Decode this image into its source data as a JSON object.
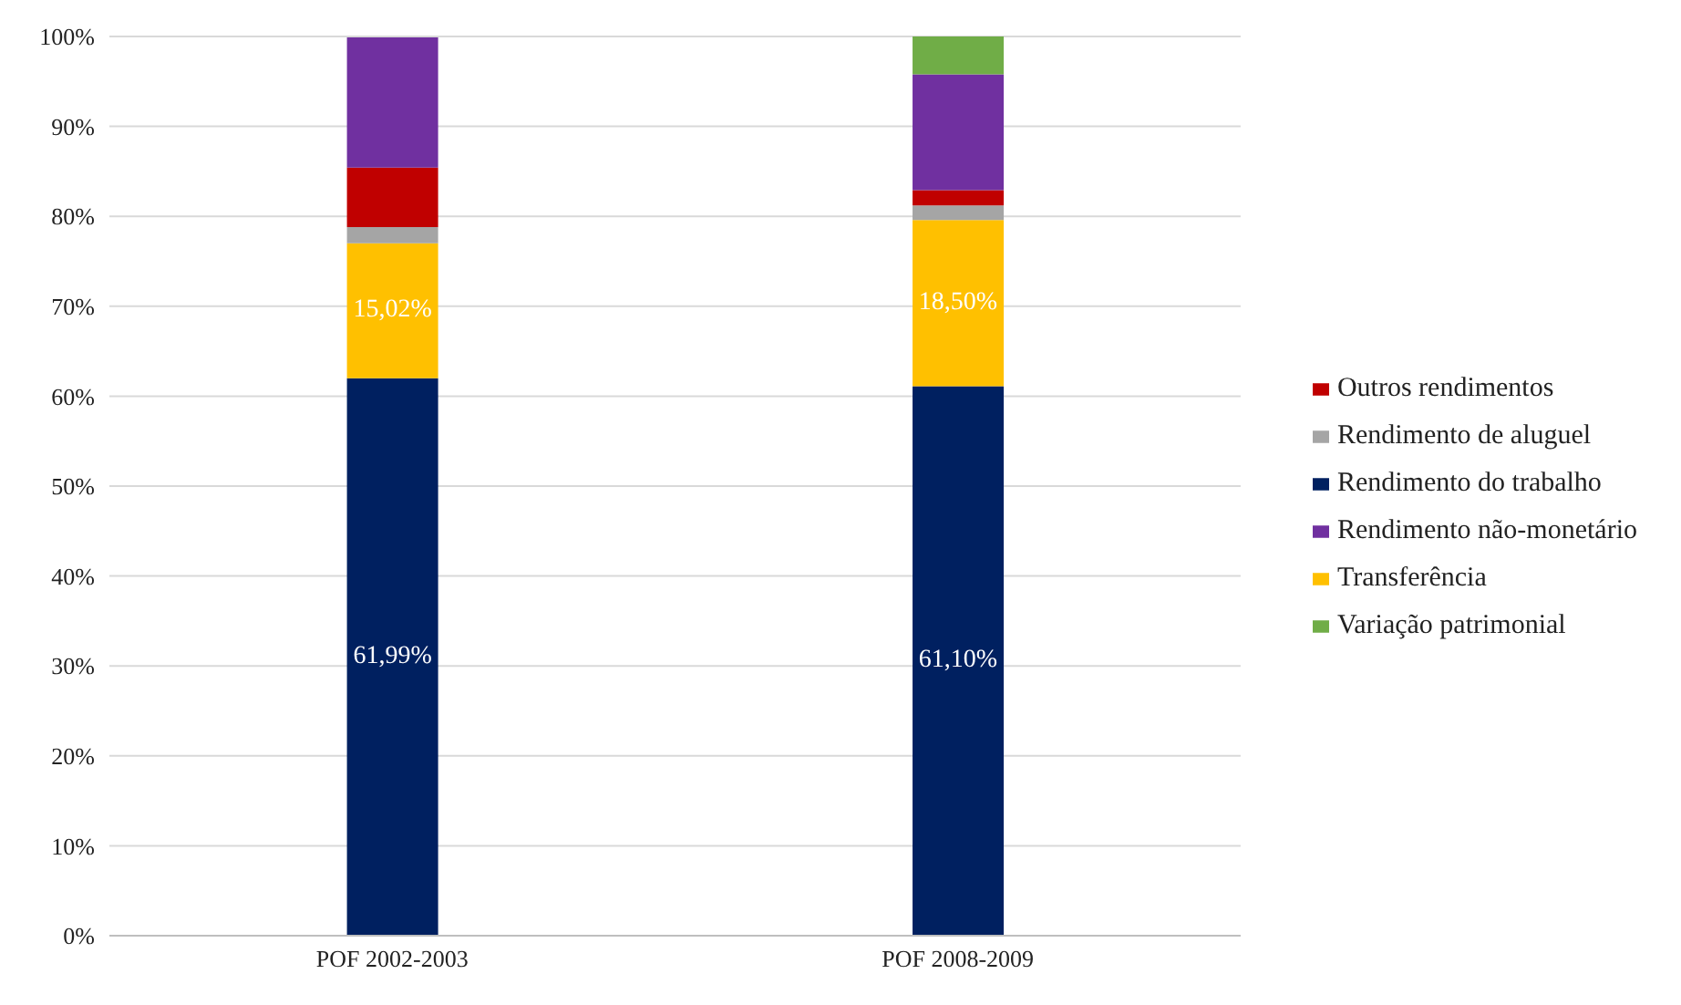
{
  "chart_data": {
    "type": "bar",
    "stacked": true,
    "categories": [
      "POF 2002-2003",
      "POF 2008-2009"
    ],
    "series": [
      {
        "name": "Rendimento do trabalho",
        "color": "#002060",
        "values": [
          61.99,
          61.1
        ],
        "value_labels": [
          "61,99%",
          "61,10%"
        ]
      },
      {
        "name": "Transferência",
        "color": "#ffc000",
        "values": [
          15.02,
          18.5
        ],
        "value_labels": [
          "15,02%",
          "18,50%"
        ]
      },
      {
        "name": "Rendimento de aluguel",
        "color": "#a5a5a5",
        "values": [
          1.8,
          1.6
        ]
      },
      {
        "name": "Outros rendimentos",
        "color": "#c00000",
        "values": [
          6.6,
          1.7
        ]
      },
      {
        "name": "Rendimento não-monetário",
        "color": "#7030a0",
        "values": [
          14.5,
          12.9
        ]
      },
      {
        "name": "Variação patrimonial",
        "color": "#70ad47",
        "values": [
          0,
          4.2
        ]
      }
    ],
    "ylim": [
      0,
      100
    ],
    "yticks": [
      {
        "value": 0,
        "label": "0%"
      },
      {
        "value": 10,
        "label": "10%"
      },
      {
        "value": 20,
        "label": "20%"
      },
      {
        "value": 30,
        "label": "30%"
      },
      {
        "value": 40,
        "label": "40%"
      },
      {
        "value": 50,
        "label": "50%"
      },
      {
        "value": 60,
        "label": "60%"
      },
      {
        "value": 70,
        "label": "70%"
      },
      {
        "value": 80,
        "label": "80%"
      },
      {
        "value": 90,
        "label": "90%"
      },
      {
        "value": 100,
        "label": "100%"
      }
    ],
    "grid": "y",
    "legend": "right"
  }
}
